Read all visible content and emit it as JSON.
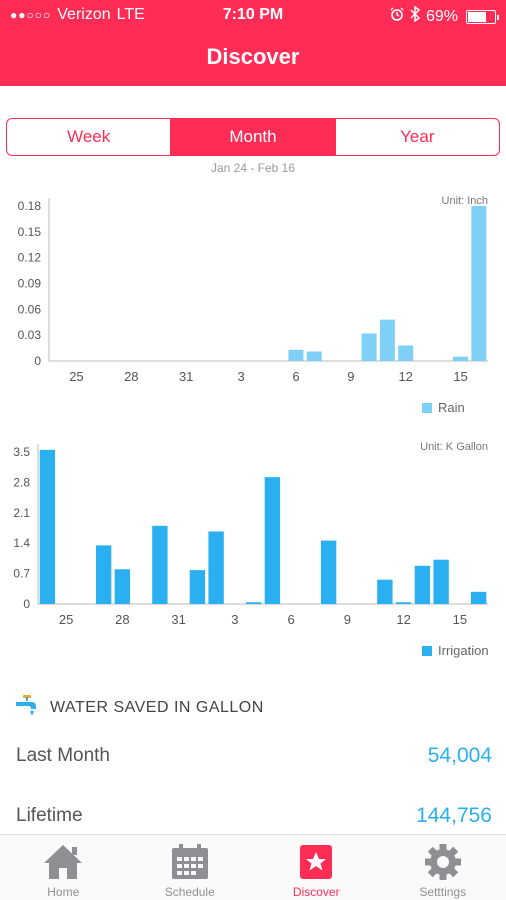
{
  "status_bar": {
    "signal": "●●○○○",
    "carrier": "Verizon",
    "network": "LTE",
    "time": "7:10 PM",
    "battery": "69%",
    "battery_level": 0.69
  },
  "header": {
    "title": "Discover"
  },
  "segments": [
    {
      "label": "Week",
      "active": false
    },
    {
      "label": "Month",
      "active": true
    },
    {
      "label": "Year",
      "active": false
    }
  ],
  "date_range": "Jan 24 - Feb 16",
  "colors": {
    "accent": "#ff2d55",
    "rain": "#7fd0f7",
    "irrigation": "#2ab0f0"
  },
  "chart_data": [
    {
      "type": "bar",
      "unit": "Unit: Inch",
      "legend": "Rain",
      "x_ticks": [
        "25",
        "28",
        "31",
        "3",
        "6",
        "9",
        "12",
        "15"
      ],
      "y_ticks": [
        "0.18",
        "0.15",
        "0.12",
        "0.09",
        "0.06",
        "0.03",
        "0"
      ],
      "ylim": [
        0,
        0.18
      ],
      "days": [
        "24",
        "25",
        "26",
        "27",
        "28",
        "29",
        "30",
        "31",
        "1",
        "2",
        "3",
        "4",
        "5",
        "6",
        "7",
        "8",
        "9",
        "10",
        "11",
        "12",
        "13",
        "14",
        "15",
        "16"
      ],
      "values": [
        0,
        0,
        0,
        0,
        0,
        0,
        0,
        0,
        0,
        0,
        0,
        0,
        0,
        0.013,
        0.011,
        0,
        0,
        0.032,
        0.048,
        0.018,
        0,
        0,
        0.005,
        0.18
      ]
    },
    {
      "type": "bar",
      "unit": "Unit: K Gallon",
      "legend": "Irrigation",
      "x_ticks": [
        "25",
        "28",
        "31",
        "3",
        "6",
        "9",
        "12",
        "15"
      ],
      "y_ticks": [
        "3.5",
        "2.8",
        "2.1",
        "1.4",
        "0.7",
        "0"
      ],
      "ylim": [
        0,
        3.5
      ],
      "days": [
        "24",
        "25",
        "26",
        "27",
        "28",
        "29",
        "30",
        "31",
        "1",
        "2",
        "3",
        "4",
        "5",
        "6",
        "7",
        "8",
        "9",
        "10",
        "11",
        "12",
        "13",
        "14",
        "15",
        "16"
      ],
      "values": [
        3.55,
        0,
        0,
        1.35,
        0.8,
        0,
        1.8,
        0,
        0.78,
        1.67,
        0,
        0.04,
        2.92,
        0,
        0,
        1.46,
        0,
        0,
        0.56,
        0.04,
        0.88,
        1.02,
        0,
        0.28
      ]
    }
  ],
  "water_saved": {
    "title": "WATER SAVED IN GALLON",
    "rows": [
      {
        "label": "Last Month",
        "value": "54,004"
      },
      {
        "label": "Lifetime",
        "value": "144,756"
      }
    ]
  },
  "tabbar": [
    {
      "label": "Home",
      "icon": "home-icon",
      "active": false
    },
    {
      "label": "Schedule",
      "icon": "calendar-icon",
      "active": false
    },
    {
      "label": "Discover",
      "icon": "star-icon",
      "active": true
    },
    {
      "label": "Setttings",
      "icon": "gear-icon",
      "active": false
    }
  ]
}
